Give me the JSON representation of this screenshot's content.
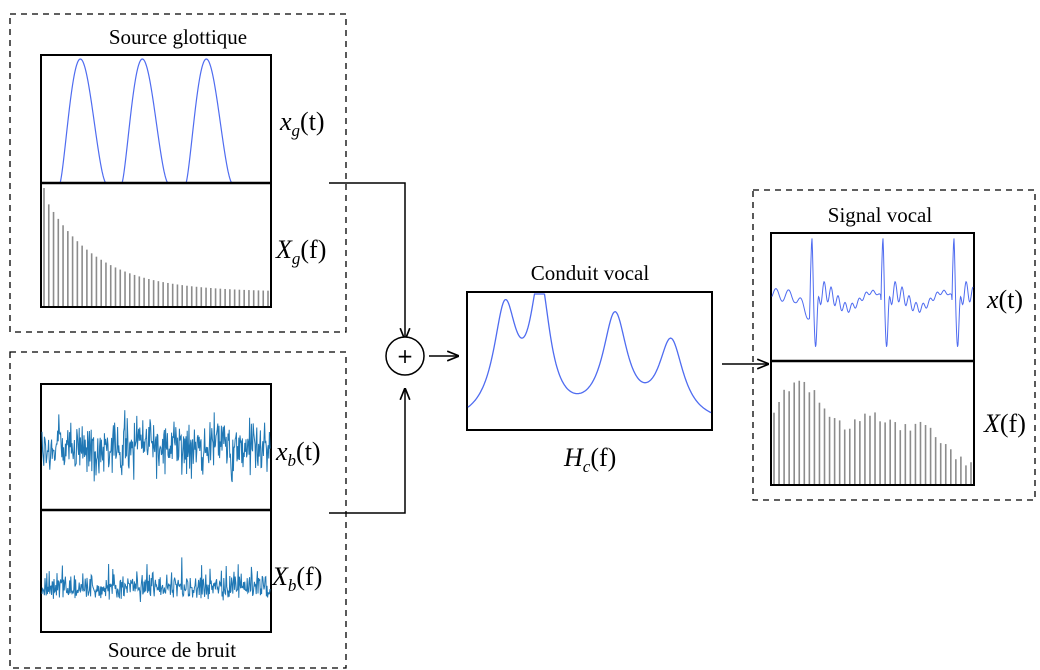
{
  "glottal_source": {
    "title": "Source glottique",
    "time_label": {
      "base": "x",
      "sub": "g",
      "arg": "(t)"
    },
    "freq_label": {
      "base": "X",
      "sub": "g",
      "arg": "(f)"
    }
  },
  "noise_source": {
    "title": "Source de bruit",
    "time_label": {
      "base": "x",
      "sub": "b",
      "arg": "(t)"
    },
    "freq_label": {
      "base": "X",
      "sub": "b",
      "arg": "(f)"
    }
  },
  "adder": {
    "symbol": "+"
  },
  "vocal_tract": {
    "title": "Conduit vocal",
    "label": {
      "base": "H",
      "sub": "c",
      "arg": "(f)"
    }
  },
  "voice_signal": {
    "title": "Signal vocal",
    "time_label": {
      "base": "x",
      "arg": "(t)"
    },
    "freq_label": {
      "base": "X",
      "arg": "(f)"
    }
  },
  "colors": {
    "waveform": "#4f6cf0",
    "noise": "#1f77b4",
    "spectrum": "#8c8c8c"
  }
}
